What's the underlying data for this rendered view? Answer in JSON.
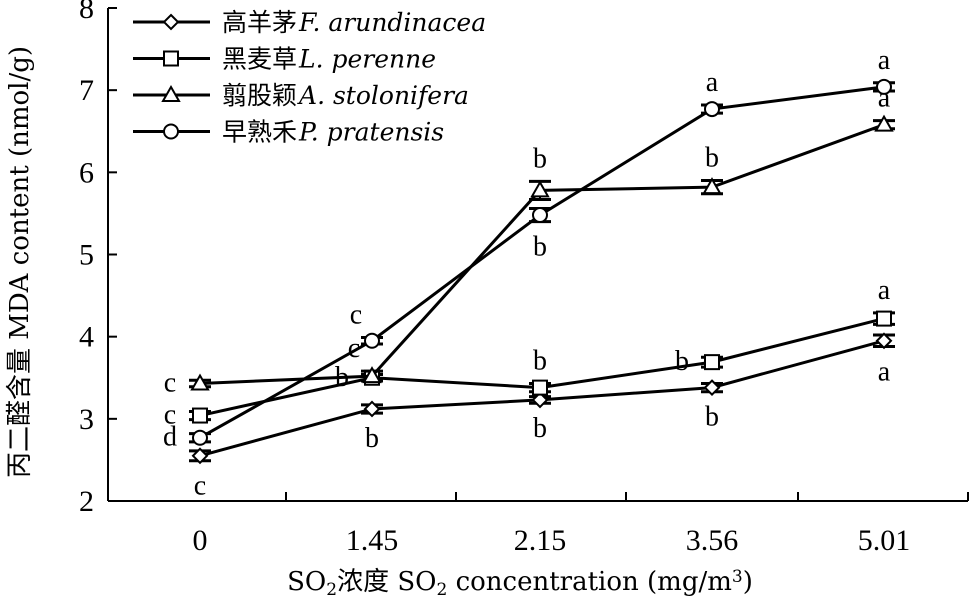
{
  "chart_data": {
    "type": "line",
    "categories": [
      "0",
      "1.45",
      "2.15",
      "3.56",
      "5.01"
    ],
    "xlabel": {
      "prefix": "SO",
      "sub": "2",
      "middle": "浓度 SO",
      "sub2": "2",
      "suffix": " concentration (mg/m",
      "sup": "3",
      "end": ")"
    },
    "ylabel": "丙二醛含量 MDA content (nmol/g)",
    "ylim": [
      2,
      8
    ],
    "yticks": [
      "2",
      "3",
      "4",
      "5",
      "6",
      "7",
      "8"
    ],
    "legend_position": "top-left",
    "series": [
      {
        "name_zh": "高羊茅",
        "name_sci": "F. arundinacea",
        "marker": "diamond",
        "values": [
          2.55,
          3.12,
          3.23,
          3.38,
          3.95
        ],
        "errors": [
          0.06,
          0.05,
          0.04,
          0.05,
          0.07
        ],
        "letters": [
          {
            "text": "c",
            "pos": "below",
            "dx": 0
          },
          {
            "text": "b",
            "pos": "below",
            "dx": 0
          },
          {
            "text": "b",
            "pos": "below",
            "dx": 0
          },
          {
            "text": "b",
            "pos": "below",
            "dx": 0
          },
          {
            "text": "a",
            "pos": "below",
            "dx": 0
          }
        ]
      },
      {
        "name_zh": "黑麦草",
        "name_sci": "L. perenne",
        "marker": "square",
        "values": [
          3.04,
          3.5,
          3.38,
          3.69,
          4.22
        ],
        "errors": [
          0.05,
          0.04,
          0.05,
          0.06,
          0.07
        ],
        "letters": [
          {
            "text": "c",
            "pos": "left",
            "dx": 0
          },
          {
            "text": "b",
            "pos": "left",
            "dx": 0
          },
          {
            "text": "b",
            "pos": "above",
            "dx": 0
          },
          {
            "text": "b",
            "pos": "left",
            "dx": 0
          },
          {
            "text": "a",
            "pos": "above",
            "dx": 0
          }
        ]
      },
      {
        "name_zh": "翦股颖",
        "name_sci": "A. stolonifera",
        "marker": "triangle",
        "values": [
          3.43,
          3.52,
          5.78,
          5.82,
          6.58
        ],
        "errors": [
          0.04,
          0.06,
          0.11,
          0.08,
          0.05
        ],
        "letters": [
          {
            "text": "c",
            "pos": "left",
            "dx": 0
          },
          {
            "text": "c",
            "pos": "above",
            "dx": -18
          },
          {
            "text": "b",
            "pos": "above",
            "dx": 0
          },
          {
            "text": "b",
            "pos": "above",
            "dx": 0
          },
          {
            "text": "a",
            "pos": "above",
            "dx": 0
          }
        ]
      },
      {
        "name_zh": "早熟禾",
        "name_sci": "P. pratensis",
        "marker": "circle",
        "values": [
          2.77,
          3.95,
          5.48,
          6.77,
          7.04
        ],
        "errors": [
          0.05,
          0.04,
          0.08,
          0.05,
          0.05
        ],
        "letters": [
          {
            "text": "d",
            "pos": "left",
            "dx": 0
          },
          {
            "text": "c",
            "pos": "above",
            "dx": -16
          },
          {
            "text": "b",
            "pos": "below",
            "dx": 0
          },
          {
            "text": "a",
            "pos": "above",
            "dx": 0
          },
          {
            "text": "a",
            "pos": "above",
            "dx": 0
          }
        ]
      }
    ]
  }
}
